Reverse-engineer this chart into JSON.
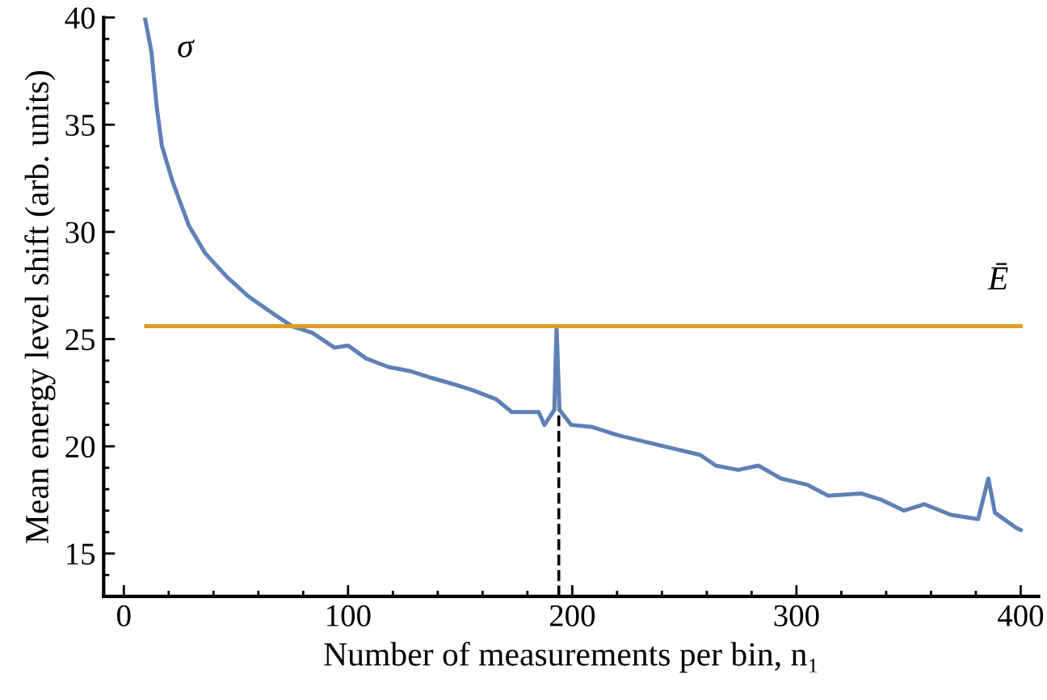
{
  "chart_data": {
    "type": "line",
    "xlabel": "Number of measurements per bin, n₁",
    "ylabel": "Mean energy level shift (arb. units)",
    "xlim": [
      -9,
      408
    ],
    "ylim": [
      13,
      40
    ],
    "xticks": [
      0,
      100,
      200,
      300,
      400
    ],
    "yticks": [
      15,
      20,
      25,
      30,
      35,
      40
    ],
    "grid": false,
    "legend": false,
    "line_style": "solid",
    "marker": "none",
    "series": [
      {
        "name": "σ",
        "color": "#5e81b5",
        "x": [
          9.4,
          12.3,
          14.7,
          17,
          21.9,
          29,
          36.3,
          46,
          55.5,
          65,
          75,
          84,
          94,
          100,
          108,
          118,
          128,
          137,
          147,
          156,
          166,
          173,
          185,
          187.6,
          192,
          193,
          194.3,
          199.5,
          209,
          221,
          233,
          245,
          257,
          264,
          274,
          283,
          293,
          305,
          314,
          329,
          338,
          348,
          357,
          369,
          381,
          385.6,
          388.5,
          398,
          400
        ],
        "values": [
          40,
          38.4,
          35.8,
          34.0,
          32.3,
          30.3,
          29.0,
          27.9,
          27.0,
          26.3,
          25.6,
          25.3,
          24.6,
          24.7,
          24.1,
          23.7,
          23.5,
          23.2,
          22.9,
          22.6,
          22.2,
          21.6,
          21.6,
          21.0,
          21.7,
          25.6,
          21.7,
          21.0,
          20.9,
          20.5,
          20.2,
          19.9,
          19.6,
          19.1,
          18.9,
          19.1,
          18.5,
          18.2,
          17.7,
          17.8,
          17.5,
          17.0,
          17.3,
          16.8,
          16.6,
          18.5,
          16.9,
          16.2,
          16.1
        ]
      },
      {
        "name": "Ē",
        "color": "#e19c24",
        "x": [
          10,
          400
        ],
        "values": [
          25.6,
          25.6
        ]
      }
    ],
    "ref_lines": [
      {
        "axis": "x",
        "value": 194,
        "color": "#000000",
        "line_style": "dashed"
      }
    ]
  }
}
